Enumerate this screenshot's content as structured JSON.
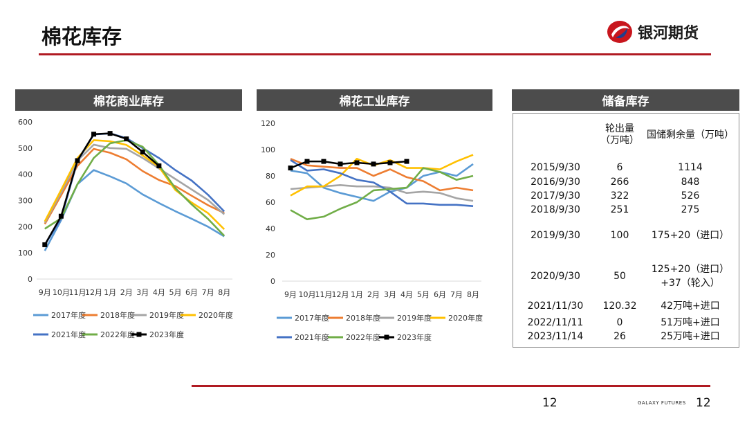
{
  "title": "棉花库存",
  "logo": {
    "brand": "银河期货"
  },
  "footer": {
    "page_center": "12",
    "page_right": "12",
    "brand_en": "GALAXY FUTURES"
  },
  "colors": {
    "red_rule": "#b01a22",
    "header_bg": "#4c4c4c",
    "s2017": "#5b9bd5",
    "s2018": "#ed7d31",
    "s2019": "#a5a5a5",
    "s2020": "#ffc000",
    "s2021": "#4472c4",
    "s2022": "#70ad47",
    "s2023": "#000000"
  },
  "reserve": {
    "header": "储备库存",
    "col_out": "轮出量（万吨）",
    "col_out_line1": "轮出量",
    "col_out_line2": "（万吨）",
    "col_remain": "国储剩余量（万吨）",
    "rows": [
      {
        "date": "2015/9/30",
        "out": "6",
        "remain": "1114"
      },
      {
        "date": "2016/9/30",
        "out": "266",
        "remain": "848"
      },
      {
        "date": "2017/9/30",
        "out": "322",
        "remain": "526"
      },
      {
        "date": "2018/9/30",
        "out": "251",
        "remain": "275"
      },
      {
        "date": "2019/9/30",
        "out": "100",
        "remain": "175+20（进口）"
      },
      {
        "date": "2020/9/30",
        "out": "50",
        "remain": "125+20（进口）",
        "remain2": "+37（轮入）"
      },
      {
        "date": "2021/11/30",
        "out": "120.32",
        "remain": "42万吨+进口"
      },
      {
        "date": "2022/11/11",
        "out": "0",
        "remain": "51万吨+进口"
      },
      {
        "date": "2023/11/14",
        "out": "26",
        "remain": "25万吨+进口"
      }
    ]
  },
  "chart_data": [
    {
      "type": "line",
      "title": "棉花商业库存",
      "categories": [
        "9月",
        "10月",
        "11月",
        "12月",
        "1月",
        "2月",
        "3月",
        "4月",
        "5月",
        "6月",
        "7月",
        "8月"
      ],
      "ylim": [
        0,
        600
      ],
      "yticks": [
        0,
        100,
        200,
        300,
        400,
        500,
        600
      ],
      "legend_position": "bottom",
      "series": [
        {
          "name": "2017年度",
          "color": "#5b9bd5",
          "values": [
            108,
            225,
            362,
            416,
            392,
            365,
            323,
            290,
            259,
            230,
            200,
            163
          ]
        },
        {
          "name": "2018年度",
          "color": "#ed7d31",
          "values": [
            210,
            320,
            432,
            497,
            482,
            457,
            412,
            378,
            355,
            318,
            282,
            252
          ]
        },
        {
          "name": "2019年度",
          "color": "#a5a5a5",
          "values": [
            215,
            330,
            452,
            513,
            500,
            497,
            462,
            422,
            382,
            342,
            302,
            247
          ]
        },
        {
          "name": "2020年度",
          "color": "#ffc000",
          "values": [
            220,
            340,
            462,
            530,
            526,
            512,
            472,
            428,
            340,
            292,
            252,
            190
          ]
        },
        {
          "name": "2021年度",
          "color": "#4472c4",
          "values": [
            130,
            232,
            450,
            552,
            556,
            538,
            500,
            462,
            416,
            376,
            322,
            258
          ]
        },
        {
          "name": "2022年度",
          "color": "#70ad47",
          "values": [
            192,
            232,
            362,
            462,
            518,
            530,
            505,
            435,
            347,
            285,
            230,
            165
          ]
        },
        {
          "name": "2023年度",
          "color": "#000000",
          "values": [
            131,
            240,
            452,
            553,
            556,
            535,
            485,
            432,
            null,
            null,
            null,
            null
          ]
        }
      ]
    },
    {
      "type": "line",
      "title": "棉花工业库存",
      "categories": [
        "9月",
        "10月",
        "11月",
        "12月",
        "1月",
        "2月",
        "3月",
        "4月",
        "5月",
        "6月",
        "7月",
        "8月"
      ],
      "ylim": [
        0,
        120
      ],
      "yticks": [
        0,
        20,
        40,
        60,
        80,
        100,
        120
      ],
      "legend_position": "bottom",
      "series": [
        {
          "name": "2017年度",
          "color": "#5b9bd5",
          "values": [
            84,
            82,
            71,
            67,
            64,
            61,
            68,
            71,
            80,
            83,
            80,
            89
          ]
        },
        {
          "name": "2018年度",
          "color": "#ed7d31",
          "values": [
            93,
            88,
            87,
            86,
            86,
            80,
            85,
            79,
            76,
            69,
            71,
            69
          ]
        },
        {
          "name": "2019年度",
          "color": "#a5a5a5",
          "values": [
            70,
            71,
            72,
            73,
            72,
            72,
            71,
            67,
            68,
            67,
            63,
            61
          ]
        },
        {
          "name": "2020年度",
          "color": "#ffc000",
          "values": [
            65,
            72,
            72,
            80,
            93,
            88,
            92,
            86,
            86,
            85,
            91,
            96
          ]
        },
        {
          "name": "2021年度",
          "color": "#4472c4",
          "values": [
            92,
            84,
            85,
            82,
            77,
            75,
            68,
            59,
            59,
            58,
            58,
            57
          ]
        },
        {
          "name": "2022年度",
          "color": "#70ad47",
          "values": [
            54,
            47,
            49,
            55,
            60,
            69,
            70,
            71,
            86,
            83,
            77,
            80
          ]
        },
        {
          "name": "2023年度",
          "color": "#000000",
          "values": [
            86,
            91,
            91,
            89,
            90,
            89,
            90,
            91,
            null,
            null,
            null,
            null
          ]
        }
      ]
    }
  ]
}
